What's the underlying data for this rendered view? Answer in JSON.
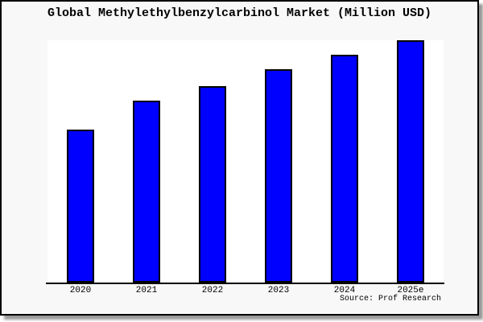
{
  "title": "Global Methylethylbenzylcarbinol Market (Million USD)",
  "source": "Source: Prof Research",
  "colors": {
    "card_background": "#f8f8f8",
    "plot_background": "#ffffff",
    "bar_fill": "#0000ff",
    "bar_border": "#000000",
    "axis": "#000000",
    "border": "#000000",
    "shadow": "#9a9a9a"
  },
  "chart_data": {
    "type": "bar",
    "title": "Global Methylethylbenzylcarbinol Market (Million USD)",
    "categories": [
      "2020",
      "2021",
      "2022",
      "2023",
      "2024",
      "2025e"
    ],
    "values": [
      63,
      75,
      81,
      88,
      94,
      100
    ],
    "xlabel": "",
    "ylabel": "",
    "ylim": [
      0,
      100
    ],
    "grid": false,
    "legend_position": "none",
    "y_axis_ticks_visible": false,
    "values_note": "no numeric axis or data labels shown; values are relative bar heights (max bar = 100)"
  }
}
